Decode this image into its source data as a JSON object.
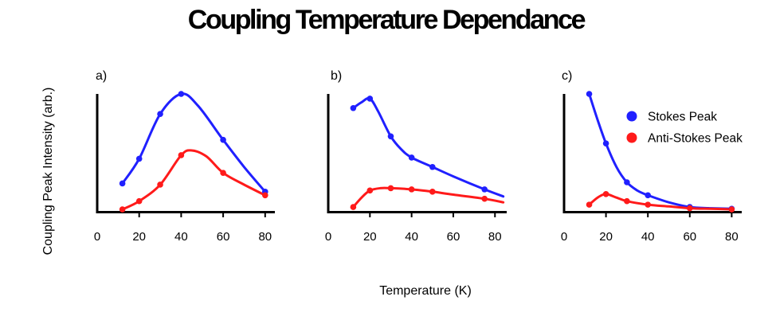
{
  "title": "Coupling Temperature Dependance",
  "ylabel": "Coupling Peak Intensity (arb.)",
  "xlabel": "Temperature (K)",
  "legend": {
    "position": "top-right of panel c",
    "entries": [
      {
        "label": "Stokes Peak",
        "color": "#2020ff"
      },
      {
        "label": "Anti-Stokes Peak",
        "color": "#ff1a1a"
      }
    ]
  },
  "colors": {
    "stokes": "#2020ff",
    "anti_stokes": "#ff1a1a",
    "axis": "#000000"
  },
  "chart_data": [
    {
      "type": "line",
      "panel_label": "a)",
      "xlim": [
        0,
        84
      ],
      "ylim": [
        0,
        1
      ],
      "x_ticks": [
        0,
        20,
        40,
        60,
        80
      ],
      "y_ticks_shown": false,
      "series": [
        {
          "name": "Stokes Peak",
          "color": "#2020ff",
          "x": [
            12,
            20,
            30,
            40,
            60,
            80
          ],
          "y": [
            0.24,
            0.45,
            0.83,
            1.0,
            0.61,
            0.17
          ],
          "smooth": [
            [
              12,
              0.24
            ],
            [
              20,
              0.45
            ],
            [
              30,
              0.83
            ],
            [
              40,
              1.0
            ],
            [
              48,
              0.9
            ],
            [
              60,
              0.61
            ],
            [
              70,
              0.38
            ],
            [
              80,
              0.17
            ]
          ]
        },
        {
          "name": "Anti-Stokes Peak",
          "color": "#ff1a1a",
          "x": [
            12,
            20,
            30,
            40,
            60,
            80
          ],
          "y": [
            0.02,
            0.09,
            0.23,
            0.48,
            0.33,
            0.14
          ],
          "smooth": [
            [
              12,
              0.02
            ],
            [
              20,
              0.09
            ],
            [
              30,
              0.23
            ],
            [
              40,
              0.48
            ],
            [
              45,
              0.52
            ],
            [
              52,
              0.47
            ],
            [
              60,
              0.33
            ],
            [
              70,
              0.23
            ],
            [
              80,
              0.14
            ]
          ]
        }
      ]
    },
    {
      "type": "line",
      "panel_label": "b)",
      "xlim": [
        0,
        84
      ],
      "ylim": [
        0,
        1
      ],
      "x_ticks": [
        0,
        20,
        40,
        60,
        80
      ],
      "y_ticks_shown": false,
      "series": [
        {
          "name": "Stokes Peak",
          "color": "#2020ff",
          "x": [
            12,
            20,
            30,
            40,
            50,
            75
          ],
          "y": [
            0.88,
            0.96,
            0.64,
            0.46,
            0.38,
            0.19
          ],
          "smooth": [
            [
              12,
              0.88
            ],
            [
              16,
              0.93
            ],
            [
              20,
              0.96
            ],
            [
              24,
              0.85
            ],
            [
              30,
              0.64
            ],
            [
              35,
              0.53
            ],
            [
              40,
              0.46
            ],
            [
              50,
              0.38
            ],
            [
              60,
              0.3
            ],
            [
              75,
              0.19
            ],
            [
              84,
              0.13
            ]
          ]
        },
        {
          "name": "Anti-Stokes Peak",
          "color": "#ff1a1a",
          "x": [
            12,
            20,
            30,
            40,
            50,
            75
          ],
          "y": [
            0.04,
            0.18,
            0.2,
            0.19,
            0.17,
            0.11
          ],
          "smooth": [
            [
              12,
              0.04
            ],
            [
              16,
              0.12
            ],
            [
              20,
              0.18
            ],
            [
              25,
              0.2
            ],
            [
              30,
              0.2
            ],
            [
              40,
              0.19
            ],
            [
              50,
              0.17
            ],
            [
              60,
              0.145
            ],
            [
              75,
              0.11
            ],
            [
              84,
              0.08
            ]
          ]
        }
      ]
    },
    {
      "type": "line",
      "panel_label": "c)",
      "xlim": [
        0,
        84
      ],
      "ylim": [
        0,
        1
      ],
      "x_ticks": [
        0,
        20,
        40,
        60,
        80
      ],
      "y_ticks_shown": false,
      "series": [
        {
          "name": "Stokes Peak",
          "color": "#2020ff",
          "x": [
            12,
            20,
            30,
            40,
            60,
            80
          ],
          "y": [
            1.0,
            0.58,
            0.25,
            0.14,
            0.04,
            0.025
          ],
          "smooth": [
            [
              12,
              1.0
            ],
            [
              16,
              0.78
            ],
            [
              20,
              0.58
            ],
            [
              25,
              0.38
            ],
            [
              30,
              0.25
            ],
            [
              35,
              0.18
            ],
            [
              40,
              0.14
            ],
            [
              50,
              0.08
            ],
            [
              60,
              0.04
            ],
            [
              70,
              0.03
            ],
            [
              80,
              0.025
            ]
          ]
        },
        {
          "name": "Anti-Stokes Peak",
          "color": "#ff1a1a",
          "x": [
            12,
            20,
            30,
            40,
            60,
            80
          ],
          "y": [
            0.06,
            0.15,
            0.09,
            0.06,
            0.03,
            0.02
          ],
          "smooth": [
            [
              12,
              0.06
            ],
            [
              16,
              0.12
            ],
            [
              20,
              0.15
            ],
            [
              25,
              0.12
            ],
            [
              30,
              0.09
            ],
            [
              40,
              0.06
            ],
            [
              50,
              0.045
            ],
            [
              60,
              0.03
            ],
            [
              70,
              0.025
            ],
            [
              80,
              0.02
            ]
          ]
        }
      ]
    }
  ]
}
